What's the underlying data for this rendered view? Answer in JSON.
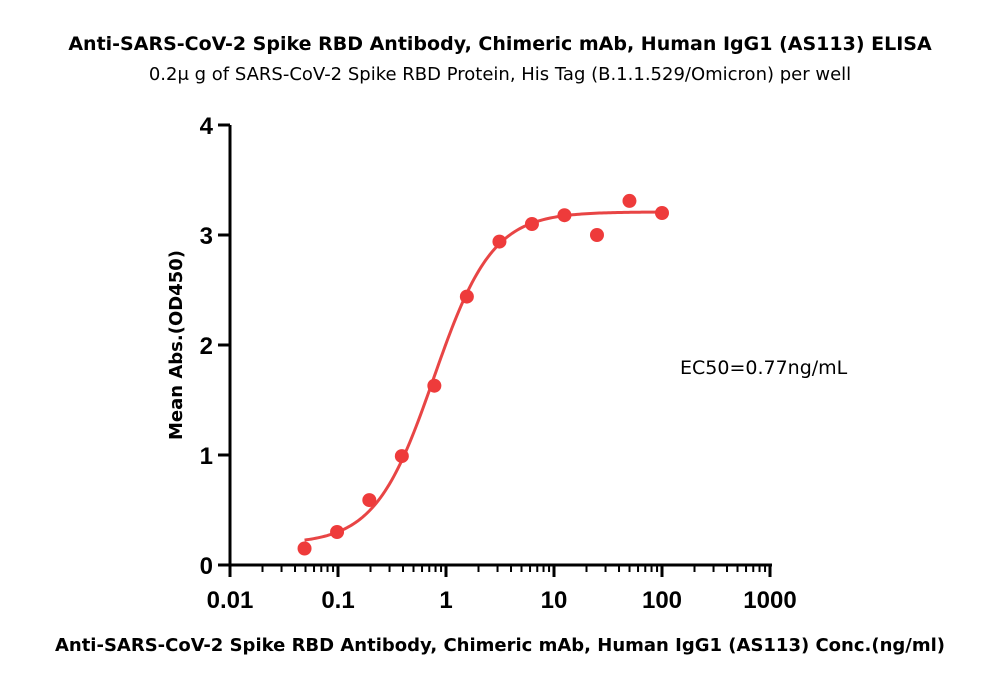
{
  "chart_data": {
    "type": "scatter",
    "title": "Anti-SARS-CoV-2 Spike RBD Antibody, Chimeric mAb, Human IgG1 (AS113)  ELISA",
    "subtitle": "0.2μ g of SARS-CoV-2 Spike RBD Protein, His Tag (B.1.1.529/Omicron)  per well",
    "xlabel": "Anti-SARS-CoV-2 Spike RBD Antibody, Chimeric mAb, Human IgG1 (AS113) Conc.(ng/ml)",
    "ylabel": "Mean Abs.(OD450)",
    "xscale": "log",
    "xlim": [
      0.01,
      1000
    ],
    "ylim": [
      0,
      4
    ],
    "x_ticks": [
      "0.01",
      "0.1",
      "1",
      "10",
      "100",
      "1000"
    ],
    "y_ticks": [
      "0",
      "1",
      "2",
      "3",
      "4"
    ],
    "grid": false,
    "annotation": "EC50=0.77ng/mL",
    "series": [
      {
        "color": "#ee3b3b",
        "x": [
          0.049,
          0.098,
          0.195,
          0.39,
          0.78,
          1.56,
          3.125,
          6.25,
          12.5,
          25,
          50,
          100
        ],
        "y": [
          0.15,
          0.3,
          0.59,
          0.99,
          1.63,
          2.44,
          2.94,
          3.1,
          3.18,
          3.0,
          3.31,
          3.2
        ]
      }
    ],
    "fit": {
      "color": "#e84545",
      "model": "4PL",
      "bottom": 0.19,
      "top": 3.21,
      "ec50": 0.77,
      "hill": 1.6
    }
  }
}
